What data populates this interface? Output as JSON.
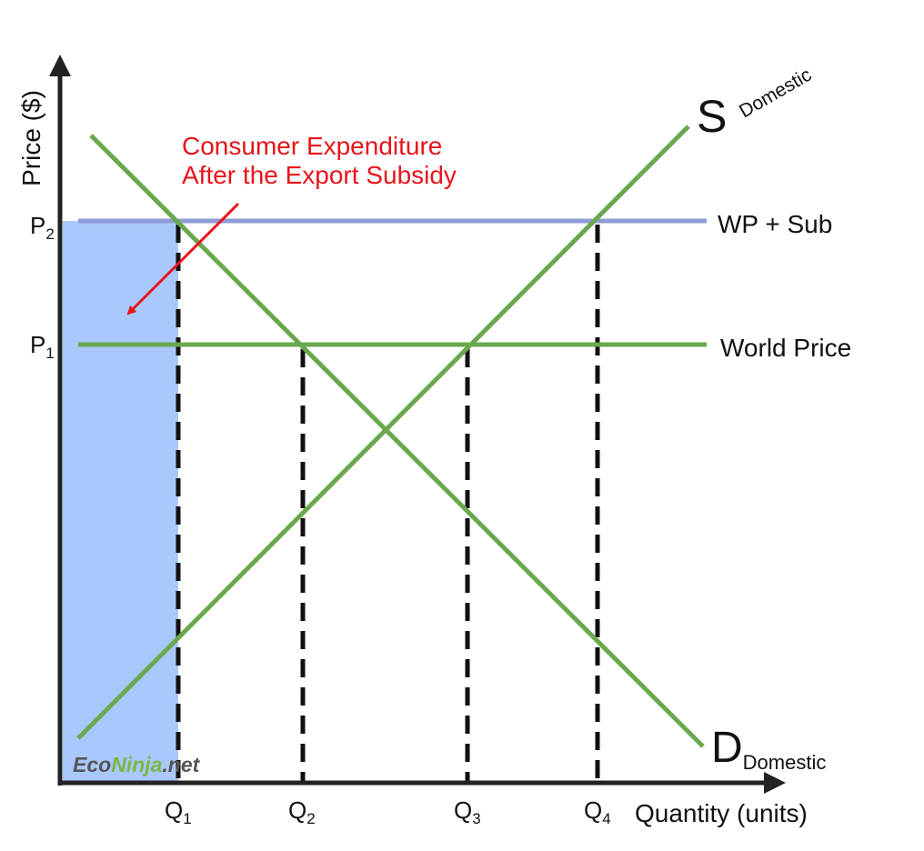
{
  "colors": {
    "green": "#6aa84f",
    "blue_line": "#8e9bd6",
    "blue_fill": "#a9c8fb",
    "axis": "#222222",
    "dash": "#111111",
    "annotation": "#e8141b",
    "brand_dark": "#555555",
    "brand_accent": "#7ab648"
  },
  "axes": {
    "y_label": "Price ($)",
    "x_label": "Quantity (units)"
  },
  "price_ticks": [
    {
      "main": "P",
      "sub": "2"
    },
    {
      "main": "P",
      "sub": "1"
    }
  ],
  "quantity_ticks": [
    {
      "main": "Q",
      "sub": "1"
    },
    {
      "main": "Q",
      "sub": "2"
    },
    {
      "main": "Q",
      "sub": "3"
    },
    {
      "main": "Q",
      "sub": "4"
    }
  ],
  "lines": {
    "supply": {
      "main": "S",
      "sub": "Domestic"
    },
    "demand": {
      "main": "D",
      "sub": "Domestic"
    },
    "wp_sub": "WP + Sub",
    "world_price": "World Price"
  },
  "annotation": {
    "line1": "Consumer Expenditure",
    "line2": "After the Export Subsidy"
  },
  "brand": {
    "part1": "Eco",
    "part2": "Ninja",
    "part3": ".net"
  }
}
